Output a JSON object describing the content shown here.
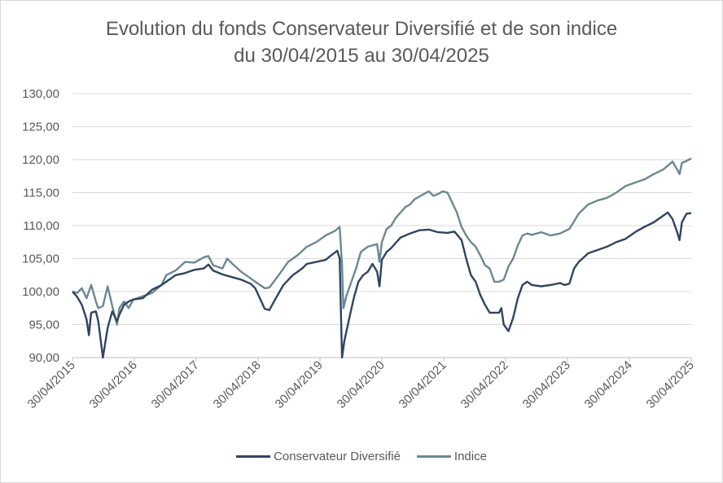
{
  "title_line1": "Evolution du fonds Conservateur Diversifié et de son indice",
  "title_line2": "du 30/04/2015 au 30/04/2025",
  "chart_data": {
    "type": "line",
    "title": "Evolution du fonds Conservateur Diversifié et de son indice du 30/04/2015 au 30/04/2025",
    "xlabel": "",
    "ylabel": "",
    "ylim": [
      90,
      130
    ],
    "yticks": [
      "90,00",
      "95,00",
      "100,00",
      "105,00",
      "110,00",
      "115,00",
      "120,00",
      "125,00",
      "130,00"
    ],
    "ytick_values": [
      90,
      95,
      100,
      105,
      110,
      115,
      120,
      125,
      130
    ],
    "xticks": [
      "30/04/2015",
      "30/04/2016",
      "30/04/2017",
      "30/04/2018",
      "30/04/2019",
      "30/04/2020",
      "30/04/2021",
      "30/04/2022",
      "30/04/2023",
      "30/04/2024",
      "30/04/2025"
    ],
    "grid": true,
    "legend_position": "bottom",
    "series": [
      {
        "name": "Conservateur Diversifié",
        "color": "#2e4460",
        "points": [
          [
            0,
            100
          ],
          [
            0.1,
            99.2
          ],
          [
            0.2,
            98
          ],
          [
            0.3,
            95.8
          ],
          [
            0.35,
            93.4
          ],
          [
            0.4,
            96.8
          ],
          [
            0.5,
            97
          ],
          [
            0.55,
            95.5
          ],
          [
            0.65,
            90
          ],
          [
            0.75,
            94.5
          ],
          [
            0.85,
            97
          ],
          [
            0.95,
            95.5
          ],
          [
            1.0,
            96.5
          ],
          [
            1.1,
            98
          ],
          [
            1.2,
            98.5
          ],
          [
            1.3,
            98.8
          ],
          [
            1.5,
            99
          ],
          [
            1.7,
            100.3
          ],
          [
            1.9,
            101
          ],
          [
            2.0,
            101.5
          ],
          [
            2.2,
            102.5
          ],
          [
            2.4,
            102.8
          ],
          [
            2.6,
            103.3
          ],
          [
            2.8,
            103.5
          ],
          [
            2.9,
            104.1
          ],
          [
            3.0,
            103.2
          ],
          [
            3.2,
            102.6
          ],
          [
            3.4,
            102.2
          ],
          [
            3.6,
            101.8
          ],
          [
            3.8,
            101.2
          ],
          [
            3.9,
            100.5
          ],
          [
            4.1,
            97.4
          ],
          [
            4.2,
            97.2
          ],
          [
            4.3,
            98.5
          ],
          [
            4.5,
            101
          ],
          [
            4.7,
            102.5
          ],
          [
            4.9,
            103.5
          ],
          [
            5.0,
            104.2
          ],
          [
            5.2,
            104.5
          ],
          [
            5.4,
            104.8
          ],
          [
            5.5,
            105.4
          ],
          [
            5.65,
            106.2
          ],
          [
            5.7,
            105
          ],
          [
            5.73,
            96
          ],
          [
            5.75,
            90
          ],
          [
            5.8,
            92.5
          ],
          [
            5.9,
            95.8
          ],
          [
            6.0,
            99
          ],
          [
            6.1,
            101.5
          ],
          [
            6.2,
            102.5
          ],
          [
            6.3,
            103
          ],
          [
            6.4,
            104.2
          ],
          [
            6.5,
            103
          ],
          [
            6.55,
            100.8
          ],
          [
            6.6,
            104.8
          ],
          [
            6.7,
            106
          ],
          [
            6.8,
            106.6
          ],
          [
            7.0,
            108.2
          ],
          [
            7.2,
            108.8
          ],
          [
            7.4,
            109.3
          ],
          [
            7.6,
            109.4
          ],
          [
            7.8,
            109
          ],
          [
            8.0,
            108.9
          ],
          [
            8.15,
            109.1
          ],
          [
            8.3,
            107.8
          ],
          [
            8.4,
            105
          ],
          [
            8.5,
            102.5
          ],
          [
            8.6,
            101.5
          ],
          [
            8.7,
            99.5
          ],
          [
            8.8,
            98
          ],
          [
            8.9,
            96.8
          ],
          [
            9.0,
            96.8
          ],
          [
            9.1,
            96.8
          ],
          [
            9.15,
            97.5
          ],
          [
            9.2,
            95
          ],
          [
            9.3,
            94
          ],
          [
            9.4,
            96
          ],
          [
            9.5,
            99
          ],
          [
            9.6,
            101
          ],
          [
            9.7,
            101.5
          ],
          [
            9.8,
            101
          ],
          [
            10.0,
            100.8
          ],
          [
            10.2,
            101
          ],
          [
            10.4,
            101.3
          ],
          [
            10.5,
            101
          ],
          [
            10.6,
            101.2
          ],
          [
            10.7,
            103.5
          ],
          [
            10.8,
            104.5
          ],
          [
            11.0,
            105.8
          ],
          [
            11.2,
            106.3
          ],
          [
            11.4,
            106.8
          ],
          [
            11.6,
            107.5
          ],
          [
            11.8,
            108
          ],
          [
            12.0,
            109
          ],
          [
            12.2,
            109.8
          ],
          [
            12.4,
            110.5
          ],
          [
            12.6,
            111.5
          ],
          [
            12.7,
            112
          ],
          [
            12.8,
            111
          ],
          [
            12.9,
            109
          ],
          [
            12.95,
            107.8
          ],
          [
            13.0,
            110.5
          ],
          [
            13.1,
            111.8
          ],
          [
            13.2,
            111.9
          ]
        ]
      },
      {
        "name": "Indice",
        "color": "#6a8894",
        "points": [
          [
            0,
            100
          ],
          [
            0.1,
            99.8
          ],
          [
            0.2,
            100.5
          ],
          [
            0.3,
            99
          ],
          [
            0.4,
            101
          ],
          [
            0.5,
            98.5
          ],
          [
            0.55,
            97.5
          ],
          [
            0.65,
            97.8
          ],
          [
            0.75,
            100.8
          ],
          [
            0.85,
            97.8
          ],
          [
            0.95,
            95
          ],
          [
            1.0,
            97.5
          ],
          [
            1.1,
            98.5
          ],
          [
            1.2,
            97.5
          ],
          [
            1.3,
            98.8
          ],
          [
            1.5,
            99.3
          ],
          [
            1.7,
            99.8
          ],
          [
            1.9,
            101
          ],
          [
            2.0,
            102.5
          ],
          [
            2.2,
            103.2
          ],
          [
            2.4,
            104.5
          ],
          [
            2.6,
            104.4
          ],
          [
            2.8,
            105.2
          ],
          [
            2.9,
            105.4
          ],
          [
            3.0,
            104
          ],
          [
            3.2,
            103.5
          ],
          [
            3.3,
            105
          ],
          [
            3.4,
            104.3
          ],
          [
            3.6,
            103
          ],
          [
            3.8,
            102
          ],
          [
            3.9,
            101.5
          ],
          [
            4.1,
            100.5
          ],
          [
            4.2,
            100.6
          ],
          [
            4.4,
            102.5
          ],
          [
            4.6,
            104.5
          ],
          [
            4.8,
            105.5
          ],
          [
            5.0,
            106.8
          ],
          [
            5.2,
            107.5
          ],
          [
            5.4,
            108.5
          ],
          [
            5.6,
            109.2
          ],
          [
            5.7,
            109.8
          ],
          [
            5.75,
            104
          ],
          [
            5.78,
            97.5
          ],
          [
            5.85,
            99.5
          ],
          [
            5.95,
            101.5
          ],
          [
            6.05,
            103.5
          ],
          [
            6.15,
            106
          ],
          [
            6.3,
            106.8
          ],
          [
            6.5,
            107.2
          ],
          [
            6.55,
            104.5
          ],
          [
            6.6,
            107.5
          ],
          [
            6.7,
            109.5
          ],
          [
            6.8,
            110
          ],
          [
            6.9,
            111.2
          ],
          [
            7.0,
            112
          ],
          [
            7.1,
            112.8
          ],
          [
            7.2,
            113.2
          ],
          [
            7.3,
            114
          ],
          [
            7.5,
            114.8
          ],
          [
            7.6,
            115.2
          ],
          [
            7.7,
            114.5
          ],
          [
            7.8,
            114.8
          ],
          [
            7.9,
            115.2
          ],
          [
            8.0,
            115
          ],
          [
            8.1,
            113.5
          ],
          [
            8.2,
            112
          ],
          [
            8.3,
            109.8
          ],
          [
            8.4,
            108.5
          ],
          [
            8.5,
            107.5
          ],
          [
            8.6,
            106.8
          ],
          [
            8.7,
            105.5
          ],
          [
            8.8,
            104
          ],
          [
            8.9,
            103.5
          ],
          [
            9.0,
            101.5
          ],
          [
            9.1,
            101.5
          ],
          [
            9.2,
            101.8
          ],
          [
            9.3,
            103.8
          ],
          [
            9.4,
            105
          ],
          [
            9.5,
            107
          ],
          [
            9.6,
            108.5
          ],
          [
            9.7,
            108.8
          ],
          [
            9.8,
            108.6
          ],
          [
            10.0,
            109
          ],
          [
            10.2,
            108.5
          ],
          [
            10.4,
            108.8
          ],
          [
            10.6,
            109.5
          ],
          [
            10.8,
            111.8
          ],
          [
            11.0,
            113.2
          ],
          [
            11.2,
            113.8
          ],
          [
            11.4,
            114.2
          ],
          [
            11.6,
            115
          ],
          [
            11.8,
            116
          ],
          [
            12.0,
            116.5
          ],
          [
            12.2,
            117
          ],
          [
            12.4,
            117.8
          ],
          [
            12.6,
            118.5
          ],
          [
            12.8,
            119.7
          ],
          [
            12.9,
            118.5
          ],
          [
            12.95,
            117.8
          ],
          [
            13.0,
            119.5
          ],
          [
            13.1,
            119.8
          ],
          [
            13.2,
            120.2
          ]
        ]
      }
    ]
  }
}
